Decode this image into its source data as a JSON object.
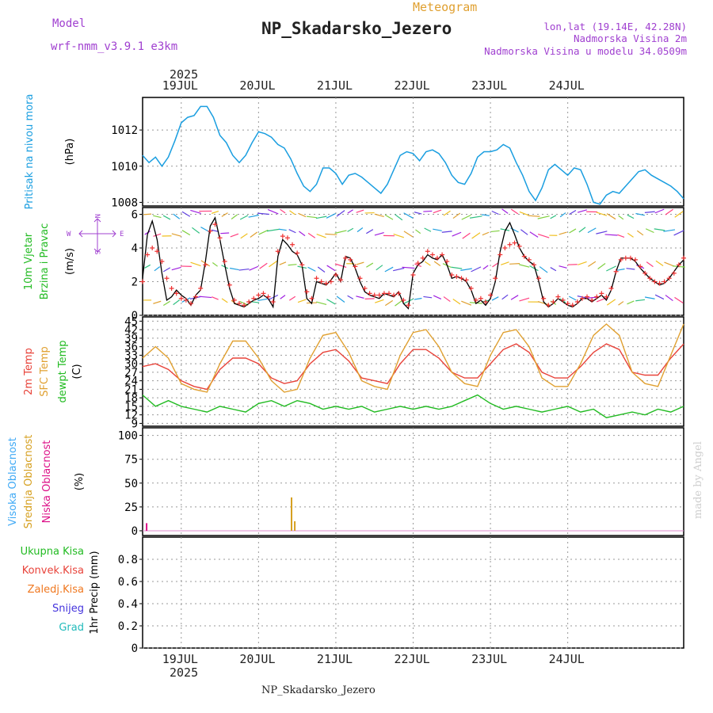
{
  "header": {
    "model_label": "Model",
    "model_name": "wrf-nmm_v3.9.1 e3km",
    "chart_kind": "Meteogram",
    "station": "NP_Skadarsko_Jezero",
    "lonlat": "lon,lat (19.14E, 42.28N)",
    "elevation": "Nadmorska Visina 2m",
    "model_elevation": "Nadmorska Visina u modelu 34.0509m",
    "footer_station": "NP_Skadarsko_Jezero",
    "credit": "made by Angel"
  },
  "colors": {
    "pressure": "#1a9ee0",
    "wind_line": "#000000",
    "wind_marks": "#ee3333",
    "t2m": "#e8433a",
    "sfc": "#e0a030",
    "dewpt": "#22bb22",
    "cloud_high": "#3fa9f5",
    "cloud_mid": "#d6a020",
    "cloud_low": "#dd1188",
    "title_purple": "#a040d0"
  },
  "time_axis": {
    "year": "2025",
    "day_labels": [
      "19JUL",
      "20JUL",
      "21JUL",
      "22JUL",
      "23JUL",
      "24JUL"
    ]
  },
  "wind_compass": {
    "n": "N",
    "s": "S",
    "w": "W",
    "e": "E"
  },
  "chart_data": [
    {
      "id": "pressure",
      "type": "line",
      "ylabel_lines": [
        "Pritisak na nivou mora"
      ],
      "units": "(hPa)",
      "ylim": [
        1007.8,
        1013.8
      ],
      "yticks": [
        "1008",
        "1010",
        "1012"
      ],
      "ytick_values": [
        1008,
        1010,
        1012
      ],
      "x_hours_from": "2025-07-18T12:00",
      "series": [
        {
          "name": "MSLP",
          "x": [
            0,
            2,
            4,
            6,
            8,
            10,
            12,
            14,
            16,
            18,
            20,
            22,
            24,
            26,
            28,
            30,
            32,
            34,
            36,
            38,
            40,
            42,
            44,
            46,
            48,
            50,
            52,
            54,
            56,
            58,
            60,
            62,
            64,
            66,
            68,
            70,
            72,
            74,
            76,
            78,
            80,
            82,
            84,
            86,
            88,
            90,
            92,
            94,
            96,
            98,
            100,
            102,
            104,
            106,
            108,
            110,
            112,
            114,
            116,
            118,
            120,
            122,
            124,
            126,
            128,
            130,
            132,
            134,
            136,
            138,
            140,
            142,
            144,
            146,
            148,
            150,
            152,
            154,
            156,
            158,
            160,
            162,
            164,
            166,
            168
          ],
          "values": [
            1010.6,
            1010.2,
            1010.5,
            1010.0,
            1010.5,
            1011.4,
            1012.4,
            1012.7,
            1012.8,
            1013.3,
            1013.3,
            1012.7,
            1011.7,
            1011.3,
            1010.6,
            1010.2,
            1010.6,
            1011.3,
            1011.9,
            1011.8,
            1011.6,
            1011.2,
            1011.0,
            1010.4,
            1009.6,
            1008.9,
            1008.6,
            1009.0,
            1009.9,
            1009.9,
            1009.6,
            1009.0,
            1009.5,
            1009.6,
            1009.4,
            1009.1,
            1008.8,
            1008.5,
            1009.0,
            1009.8,
            1010.6,
            1010.8,
            1010.7,
            1010.3,
            1010.8,
            1010.9,
            1010.7,
            1010.2,
            1009.5,
            1009.1,
            1009.0,
            1009.6,
            1010.5,
            1010.8,
            1010.8,
            1010.9,
            1011.2,
            1011.0,
            1010.2,
            1009.5,
            1008.6,
            1008.1,
            1008.8,
            1009.8,
            1010.1,
            1009.8,
            1009.5,
            1009.9,
            1009.8,
            1009.0,
            1008.0,
            1007.9,
            1008.4,
            1008.6,
            1008.5,
            1008.9,
            1009.3,
            1009.7,
            1009.8,
            1009.5,
            1009.3,
            1009.1,
            1008.9,
            1008.6,
            1008.2
          ]
        }
      ]
    },
    {
      "id": "wind",
      "type": "line",
      "ylabel_lines": [
        "10m Vjetar",
        "Brzina i Pravac"
      ],
      "units": "(m/s)",
      "ylim": [
        0,
        6.4
      ],
      "yticks": [
        "0",
        "2",
        "4",
        "6"
      ],
      "ytick_values": [
        0,
        2,
        4,
        6
      ],
      "series": [
        {
          "name": "Wind speed",
          "x": [
            0,
            1.5,
            3,
            4.5,
            6,
            7.5,
            9,
            10.5,
            12,
            13.5,
            15,
            16.5,
            18,
            19.5,
            21,
            22.5,
            24,
            25.5,
            27,
            28.5,
            30,
            31.5,
            33,
            34.5,
            36,
            37.5,
            39,
            40.5,
            42,
            43.5,
            45,
            46.5,
            48,
            49.5,
            51,
            52.5,
            54,
            55.5,
            57,
            58.5,
            60,
            61.5,
            63,
            64.5,
            66,
            67.5,
            69,
            70.5,
            72,
            73.5,
            75,
            76.5,
            78,
            79.5,
            81,
            82.5,
            84,
            85.5,
            87,
            88.5,
            90,
            91.5,
            93,
            94.5,
            96,
            97.5,
            99,
            100.5,
            102,
            103.5,
            105,
            106.5,
            108,
            109.5,
            111,
            112.5,
            114,
            115.5,
            117,
            118.5,
            120,
            121.5,
            123,
            124.5,
            126,
            127.5,
            129,
            130.5,
            132,
            133.5,
            135,
            136.5,
            138,
            139.5,
            141,
            142.5,
            144,
            145.5,
            147,
            148.5,
            150,
            151.5,
            153,
            154.5,
            156,
            157.5,
            159,
            160.5,
            162,
            163.5,
            165,
            166.5,
            168
          ],
          "values": [
            2.2,
            4.8,
            5.6,
            4.5,
            2.5,
            0.9,
            1.1,
            1.5,
            1.2,
            1.0,
            0.6,
            1.2,
            1.5,
            3.2,
            5.3,
            5.8,
            4.5,
            3.0,
            1.6,
            0.7,
            0.6,
            0.5,
            0.7,
            0.9,
            1.0,
            1.2,
            1.0,
            0.5,
            3.5,
            4.5,
            4.2,
            3.8,
            3.6,
            3.0,
            1.0,
            0.7,
            2.0,
            1.9,
            1.8,
            2.1,
            2.5,
            2.0,
            3.5,
            3.4,
            2.8,
            2.0,
            1.4,
            1.2,
            1.1,
            1.0,
            1.3,
            1.2,
            1.1,
            1.4,
            0.7,
            0.4,
            2.5,
            3.0,
            3.2,
            3.6,
            3.4,
            3.3,
            3.6,
            3.0,
            2.2,
            2.3,
            2.2,
            2.0,
            1.5,
            0.7,
            0.9,
            0.6,
            1.0,
            2.0,
            3.8,
            5.0,
            5.5,
            4.8,
            4.0,
            3.5,
            3.2,
            3.0,
            2.0,
            0.8,
            0.5,
            0.7,
            1.0,
            0.8,
            0.6,
            0.5,
            0.7,
            1.0,
            1.0,
            0.8,
            1.0,
            1.2,
            0.9,
            1.5,
            2.6,
            3.4,
            3.4,
            3.4,
            3.2,
            2.8,
            2.5,
            2.2,
            2.0,
            1.8,
            1.9,
            2.2,
            2.6,
            3.0,
            3.3
          ]
        },
        {
          "name": "Wind marks",
          "style": "plus",
          "x": [
            0,
            1.5,
            3,
            4.5,
            6,
            7.5,
            9,
            10.5,
            12,
            13.5,
            15,
            16.5,
            18,
            19.5,
            21,
            22.5,
            24,
            25.5,
            27,
            28.5,
            30,
            31.5,
            33,
            34.5,
            36,
            37.5,
            39,
            40.5,
            42,
            43.5,
            45,
            46.5,
            48,
            49.5,
            51,
            52.5,
            54,
            55.5,
            57,
            58.5,
            60,
            61.5,
            63,
            64.5,
            66,
            67.5,
            69,
            70.5,
            72,
            73.5,
            75,
            76.5,
            78,
            79.5,
            81,
            82.5,
            84,
            85.5,
            87,
            88.5,
            90,
            91.5,
            93,
            94.5,
            96,
            97.5,
            99,
            100.5,
            102,
            103.5,
            105,
            106.5,
            108,
            109.5,
            111,
            112.5,
            114,
            115.5,
            117,
            118.5,
            120,
            121.5,
            123,
            124.5,
            126,
            127.5,
            129,
            130.5,
            132,
            133.5,
            135,
            136.5,
            138,
            139.5,
            141,
            142.5,
            144,
            145.5,
            147,
            148.5,
            150,
            151.5,
            153,
            154.5,
            156,
            157.5,
            159,
            160.5,
            162,
            163.5,
            165,
            166.5,
            168
          ],
          "values": [
            2.0,
            3.6,
            4.0,
            3.8,
            3.2,
            2.2,
            1.6,
            1.3,
            1.0,
            0.9,
            0.7,
            1.1,
            1.6,
            3.0,
            5.0,
            5.4,
            4.6,
            3.2,
            1.8,
            0.9,
            0.7,
            0.6,
            0.8,
            1.0,
            1.2,
            1.3,
            1.1,
            0.8,
            3.8,
            4.7,
            4.6,
            4.2,
            3.7,
            3.0,
            1.4,
            1.0,
            2.2,
            2.0,
            1.9,
            2.0,
            2.4,
            2.1,
            3.4,
            3.3,
            2.9,
            2.2,
            1.6,
            1.3,
            1.2,
            1.2,
            1.3,
            1.3,
            1.2,
            1.3,
            0.9,
            0.6,
            2.4,
            3.1,
            3.4,
            3.8,
            3.6,
            3.4,
            3.6,
            3.2,
            2.4,
            2.3,
            2.2,
            2.1,
            1.6,
            0.9,
            1.0,
            0.8,
            1.2,
            2.2,
            3.6,
            4.0,
            4.2,
            4.3,
            4.1,
            3.5,
            3.3,
            3.0,
            2.2,
            1.0,
            0.6,
            0.8,
            1.1,
            0.9,
            0.7,
            0.6,
            0.8,
            1.0,
            1.1,
            0.9,
            1.1,
            1.3,
            1.1,
            1.6,
            2.6,
            3.3,
            3.4,
            3.4,
            3.3,
            2.9,
            2.5,
            2.2,
            2.0,
            1.9,
            2.0,
            2.2,
            2.5,
            3.0,
            3.4
          ]
        }
      ],
      "direction_rows_ms": [
        0.9,
        2.9,
        4.9,
        6.0
      ],
      "arrow_count_per_row": 56
    },
    {
      "id": "temperature",
      "type": "line",
      "ylabel_lines": [
        "2m Temp",
        "SFC Temp",
        "dewpt Temp"
      ],
      "units": "(C)",
      "ylim": [
        8,
        46.5
      ],
      "yticks": [
        "9",
        "12",
        "15",
        "18",
        "21",
        "24",
        "27",
        "30",
        "33",
        "36",
        "39",
        "42",
        "45"
      ],
      "ytick_values": [
        9,
        12,
        15,
        18,
        21,
        24,
        27,
        30,
        33,
        36,
        39,
        42,
        45
      ],
      "series": [
        {
          "name": "2m Temp",
          "x": [
            0,
            4,
            8,
            12,
            16,
            20,
            24,
            28,
            32,
            36,
            40,
            44,
            48,
            52,
            56,
            60,
            64,
            68,
            72,
            76,
            80,
            84,
            88,
            92,
            96,
            100,
            104,
            108,
            112,
            116,
            120,
            124,
            128,
            132,
            136,
            140,
            144,
            148,
            152,
            156,
            160,
            164,
            168
          ],
          "values": [
            29,
            30,
            28,
            24,
            22,
            21,
            28,
            32,
            32,
            30,
            25,
            23,
            24,
            30,
            34,
            35,
            31,
            25,
            24,
            23,
            30,
            35,
            35,
            32,
            27,
            25,
            25,
            30,
            35,
            37,
            34,
            27,
            25,
            25,
            29,
            34,
            37,
            35,
            27,
            26,
            26,
            32,
            37
          ]
        },
        {
          "name": "SFC Temp",
          "x": [
            0,
            4,
            8,
            12,
            16,
            20,
            24,
            28,
            32,
            36,
            40,
            44,
            48,
            52,
            56,
            60,
            64,
            68,
            72,
            76,
            80,
            84,
            88,
            92,
            96,
            100,
            104,
            108,
            112,
            116,
            120,
            124,
            128,
            132,
            136,
            140,
            144,
            148,
            152,
            156,
            160,
            164,
            168
          ],
          "values": [
            32,
            36,
            32,
            23,
            21,
            20,
            30,
            38,
            38,
            32,
            24,
            20,
            21,
            32,
            40,
            41,
            34,
            24,
            22,
            21,
            33,
            41,
            42,
            36,
            27,
            23,
            22,
            33,
            41,
            42,
            36,
            25,
            22,
            22,
            30,
            40,
            44,
            40,
            27,
            23,
            22,
            33,
            44
          ]
        },
        {
          "name": "dewpt Temp",
          "x": [
            0,
            4,
            8,
            12,
            16,
            20,
            24,
            28,
            32,
            36,
            40,
            44,
            48,
            52,
            56,
            60,
            64,
            68,
            72,
            76,
            80,
            84,
            88,
            92,
            96,
            100,
            104,
            108,
            112,
            116,
            120,
            124,
            128,
            132,
            136,
            140,
            144,
            148,
            152,
            156,
            160,
            164,
            168
          ],
          "values": [
            19,
            15,
            17,
            15,
            14,
            13,
            15,
            14,
            13,
            16,
            17,
            15,
            17,
            16,
            14,
            15,
            14,
            15,
            13,
            14,
            15,
            14,
            15,
            14,
            15,
            17,
            19,
            16,
            14,
            15,
            14,
            13,
            14,
            15,
            13,
            14,
            11,
            12,
            13,
            12,
            14,
            13,
            15
          ]
        }
      ]
    },
    {
      "id": "clouds",
      "type": "bar",
      "ylabel_lines": [
        "Visoka Oblacnost",
        "Srednja Oblacnost",
        "Niska Oblacnost"
      ],
      "units": "(%)",
      "ylim": [
        -5,
        108
      ],
      "yticks": [
        "0",
        "25",
        "50",
        "75",
        "100"
      ],
      "ytick_values": [
        0,
        25,
        50,
        75,
        100
      ],
      "series": [
        {
          "name": "Visoka Oblacnost",
          "x": [],
          "values": []
        },
        {
          "name": "Srednja Oblacnost",
          "x": [
            46,
            47
          ],
          "values": [
            35,
            10
          ]
        },
        {
          "name": "Niska Oblacnost",
          "x": [
            1
          ],
          "values": [
            8
          ]
        }
      ]
    },
    {
      "id": "precip",
      "type": "bar",
      "ylabel_lines": [
        "Ukupna Kisa",
        "Konvek.Kisa",
        "Zaledj.Kisa",
        "Snijeg",
        "Grad"
      ],
      "units": "1hr Precip (mm)",
      "ylim": [
        0,
        1
      ],
      "yticks": [
        "0",
        "0.2",
        "0.4",
        "0.6",
        "0.8"
      ],
      "ytick_values": [
        0,
        0.2,
        0.4,
        0.6,
        0.8
      ],
      "series": [
        {
          "name": "Ukupna Kisa",
          "values": []
        },
        {
          "name": "Konvek.Kisa",
          "values": []
        },
        {
          "name": "Zaledj.Kisa",
          "values": []
        },
        {
          "name": "Snijeg",
          "values": []
        },
        {
          "name": "Grad",
          "values": []
        }
      ]
    }
  ]
}
